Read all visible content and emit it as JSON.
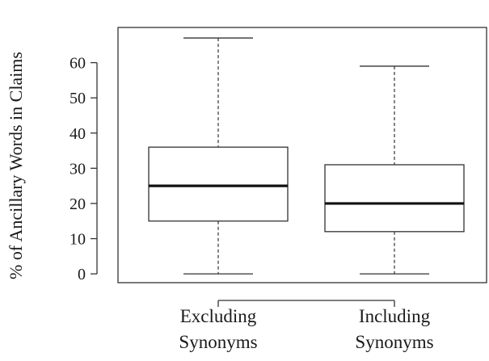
{
  "chart_data": {
    "type": "box",
    "ylabel": "% of Ancillary Words in Claims",
    "xlabel": "",
    "ylim": [
      -2.5,
      70
    ],
    "yticks": [
      0,
      10,
      20,
      30,
      40,
      50,
      60
    ],
    "grid": false,
    "categories": [
      {
        "line1": "Excluding",
        "line2": "Synonyms"
      },
      {
        "line1": "Including",
        "line2": "Synonyms"
      }
    ],
    "boxes": [
      {
        "min": 0,
        "q1": 15,
        "median": 25,
        "q3": 36,
        "max": 67
      },
      {
        "min": 0,
        "q1": 12,
        "median": 20,
        "q3": 31,
        "max": 59
      }
    ]
  }
}
